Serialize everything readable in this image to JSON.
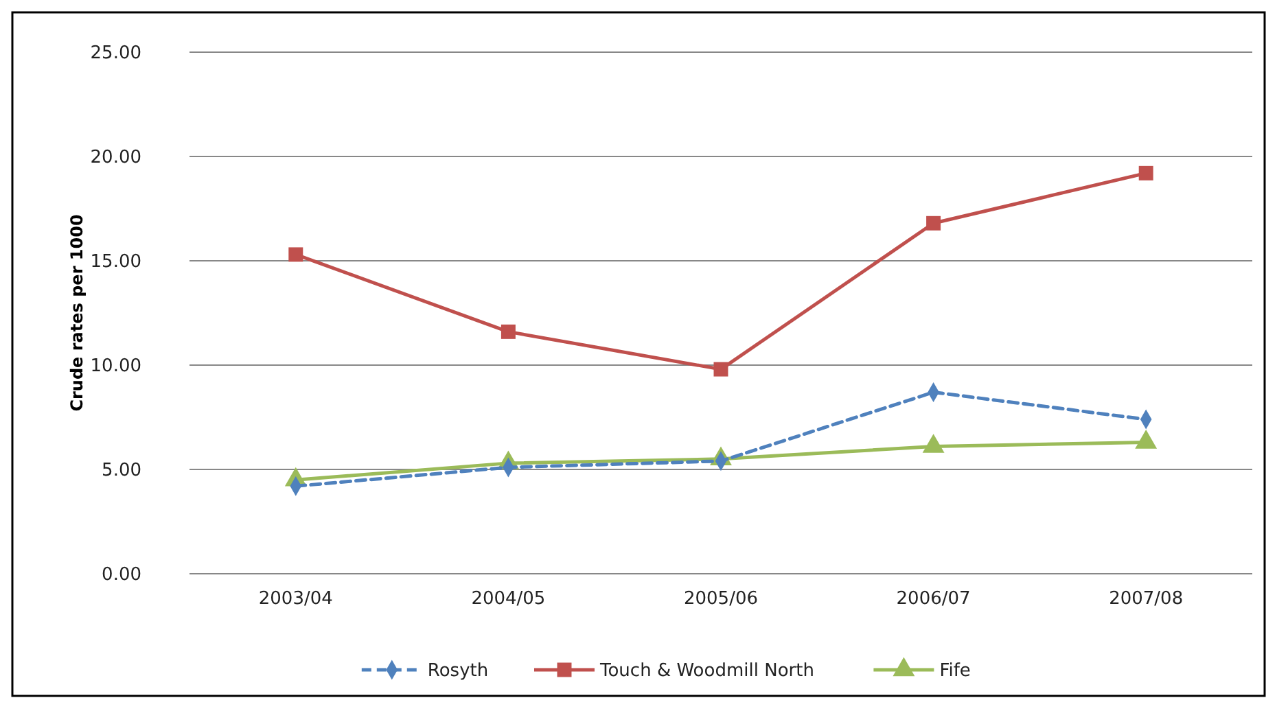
{
  "chart_data": {
    "type": "line",
    "ylabel": "Crude rates per 1000",
    "categories": [
      "2003/04",
      "2004/05",
      "2005/06",
      "2006/07",
      "2007/08"
    ],
    "ylim": [
      0,
      25
    ],
    "yticks": [
      {
        "value": 0,
        "label": "0.00"
      },
      {
        "value": 5,
        "label": "5.00"
      },
      {
        "value": 10,
        "label": "10.00"
      },
      {
        "value": 15,
        "label": "15.00"
      },
      {
        "value": 20,
        "label": "20.00"
      },
      {
        "value": 25,
        "label": "25.00"
      }
    ],
    "grid": "y",
    "legend": "bottom",
    "series": [
      {
        "name": "Rosyth",
        "color": "#4f81bd",
        "marker": "diamond",
        "line_style": "dashed",
        "values": [
          4.2,
          5.1,
          5.4,
          8.7,
          7.4
        ]
      },
      {
        "name": "Touch & Woodmill North",
        "color": "#c0504d",
        "marker": "square",
        "line_style": "solid",
        "values": [
          15.3,
          11.6,
          9.8,
          16.8,
          19.2
        ]
      },
      {
        "name": "Fife",
        "color": "#9bbb59",
        "marker": "triangle",
        "line_style": "solid",
        "values": [
          4.5,
          5.3,
          5.5,
          6.1,
          6.3
        ]
      }
    ]
  }
}
